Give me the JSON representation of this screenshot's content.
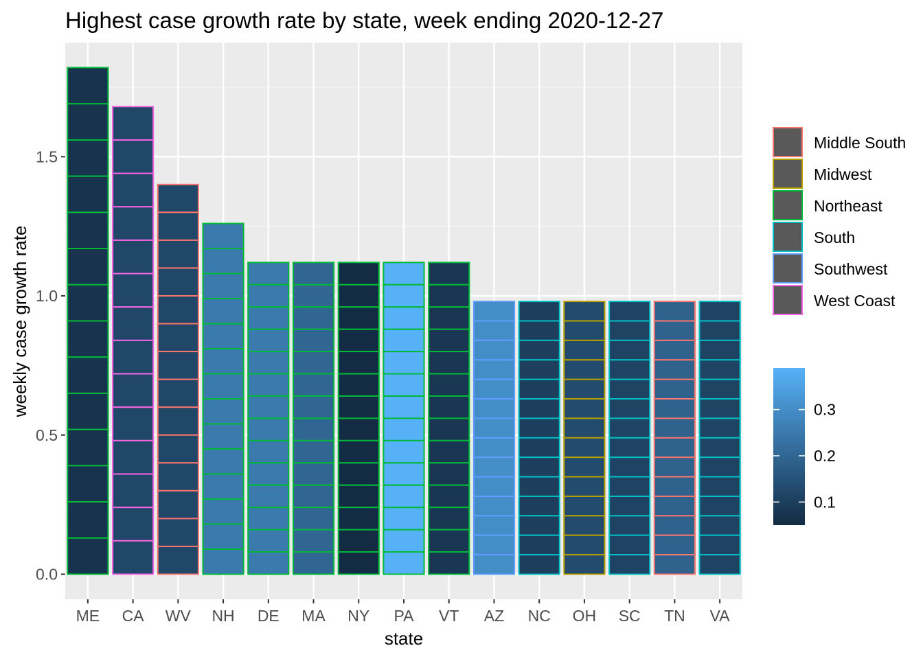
{
  "chart_data": {
    "type": "bar",
    "title": "Highest case growth rate by state, week ending 2020-12-27",
    "xlabel": "state",
    "ylabel": "weekly case growth rate",
    "ylim": [
      -0.09,
      1.91
    ],
    "yticks": [
      0.0,
      0.5,
      1.0,
      1.5
    ],
    "ytick_labels": [
      "0.0",
      "0.5",
      "1.0",
      "1.5"
    ],
    "grid": true,
    "legend_position": "right",
    "categories": [
      "ME",
      "CA",
      "WV",
      "NH",
      "DE",
      "MA",
      "NY",
      "PA",
      "VT",
      "AZ",
      "NC",
      "OH",
      "SC",
      "TN",
      "VA"
    ],
    "values": [
      1.82,
      1.68,
      1.4,
      1.26,
      1.12,
      1.12,
      1.12,
      1.12,
      1.12,
      0.98,
      0.98,
      0.98,
      0.98,
      0.98,
      0.98
    ],
    "regions": [
      "Northeast",
      "West Coast",
      "Middle South",
      "Northeast",
      "Northeast",
      "Northeast",
      "Northeast",
      "Northeast",
      "Northeast",
      "Southwest",
      "South",
      "Midwest",
      "South",
      "Middle South",
      "South"
    ],
    "fill_values": [
      0.07,
      0.12,
      0.12,
      0.25,
      0.25,
      0.2,
      0.05,
      0.39,
      0.08,
      0.3,
      0.1,
      0.13,
      0.11,
      0.19,
      0.11
    ],
    "segments": [
      14,
      14,
      14,
      14,
      14,
      14,
      14,
      14,
      14,
      14,
      14,
      14,
      14,
      14,
      14
    ],
    "color_legend": {
      "title": "",
      "items": [
        {
          "label": "Middle South",
          "color": "#F8766D"
        },
        {
          "label": "Midwest",
          "color": "#B79F00"
        },
        {
          "label": "Northeast",
          "color": "#00BA38"
        },
        {
          "label": "South",
          "color": "#00BFC4"
        },
        {
          "label": "Southwest",
          "color": "#619CFF"
        },
        {
          "label": "West Coast",
          "color": "#F564E3"
        }
      ],
      "key_fill": "#595959"
    },
    "fill_legend": {
      "title": "",
      "min": 0.05,
      "max": 0.39,
      "ticks": [
        0.1,
        0.2,
        0.3
      ],
      "tick_labels": [
        "0.1",
        "0.2",
        "0.3"
      ],
      "low_color": "#132B43",
      "high_color": "#56B1F7"
    },
    "colors": {
      "panel_background": "#EBEBEB",
      "grid_major": "#FFFFFF",
      "grid_minor": "#F5F5F5"
    }
  }
}
